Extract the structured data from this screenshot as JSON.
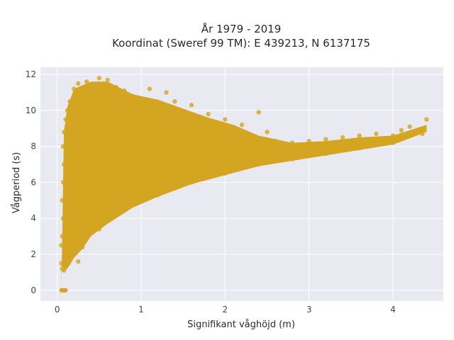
{
  "chart_data": {
    "type": "scatter",
    "title_line1": "År 1979 - 2019",
    "title_line2": "Koordinat (Sweref 99 TM): E 439213, N 6137175",
    "xlabel": "Signifikant våghöjd (m)",
    "ylabel": "Vågperiod (s)",
    "xlim": [
      -0.2,
      4.6
    ],
    "ylim": [
      -0.6,
      12.4
    ],
    "xticks": [
      0,
      1,
      2,
      3,
      4
    ],
    "yticks": [
      0,
      2,
      4,
      6,
      8,
      10,
      12
    ],
    "grid": true,
    "colors": {
      "point": "#D4A521",
      "background": "#E9E9F1",
      "grid": "#ffffff"
    },
    "points_note": "dense cloud",
    "points": [
      [
        0.05,
        0.0
      ],
      [
        0.06,
        0.0
      ],
      [
        0.07,
        0.0
      ],
      [
        0.08,
        0.0
      ],
      [
        0.09,
        0.0
      ],
      [
        0.1,
        0.0
      ],
      [
        0.05,
        1.5
      ],
      [
        0.06,
        1.2
      ],
      [
        0.08,
        1.1
      ],
      [
        0.1,
        1.3
      ],
      [
        0.12,
        1.6
      ],
      [
        0.15,
        1.8
      ],
      [
        0.05,
        2.5
      ],
      [
        0.06,
        3.0
      ],
      [
        0.07,
        4.0
      ],
      [
        0.06,
        5.0
      ],
      [
        0.07,
        6.0
      ],
      [
        0.08,
        7.0
      ],
      [
        0.07,
        8.0
      ],
      [
        0.08,
        8.8
      ],
      [
        0.1,
        9.5
      ],
      [
        0.12,
        10.0
      ],
      [
        0.15,
        10.5
      ],
      [
        0.2,
        11.2
      ],
      [
        0.25,
        11.5
      ],
      [
        0.3,
        11.0
      ],
      [
        0.35,
        11.6
      ],
      [
        0.45,
        11.4
      ],
      [
        0.5,
        11.8
      ],
      [
        0.55,
        11.5
      ],
      [
        0.6,
        11.7
      ],
      [
        0.7,
        11.3
      ],
      [
        0.8,
        11.1
      ],
      [
        0.9,
        10.8
      ],
      [
        1.1,
        11.2
      ],
      [
        1.3,
        11.0
      ],
      [
        1.4,
        10.5
      ],
      [
        1.6,
        10.3
      ],
      [
        1.8,
        9.8
      ],
      [
        2.0,
        9.5
      ],
      [
        2.2,
        9.2
      ],
      [
        2.3,
        8.6
      ],
      [
        2.5,
        8.8
      ],
      [
        2.4,
        9.9
      ],
      [
        2.6,
        8.3
      ],
      [
        2.8,
        8.2
      ],
      [
        3.0,
        8.3
      ],
      [
        3.2,
        8.4
      ],
      [
        3.4,
        8.5
      ],
      [
        3.6,
        8.6
      ],
      [
        3.8,
        8.7
      ],
      [
        4.0,
        8.6
      ],
      [
        4.1,
        8.9
      ],
      [
        4.2,
        9.1
      ],
      [
        4.3,
        8.9
      ],
      [
        4.4,
        9.5
      ],
      [
        4.35,
        8.7
      ],
      [
        4.0,
        8.2
      ],
      [
        3.6,
        7.9
      ],
      [
        3.2,
        7.6
      ],
      [
        2.8,
        7.3
      ],
      [
        2.4,
        7.0
      ],
      [
        2.0,
        6.5
      ],
      [
        1.6,
        6.0
      ],
      [
        1.2,
        5.3
      ],
      [
        0.8,
        4.5
      ],
      [
        0.5,
        3.4
      ],
      [
        0.3,
        2.4
      ],
      [
        0.2,
        2.0
      ],
      [
        0.25,
        1.6
      ]
    ]
  }
}
